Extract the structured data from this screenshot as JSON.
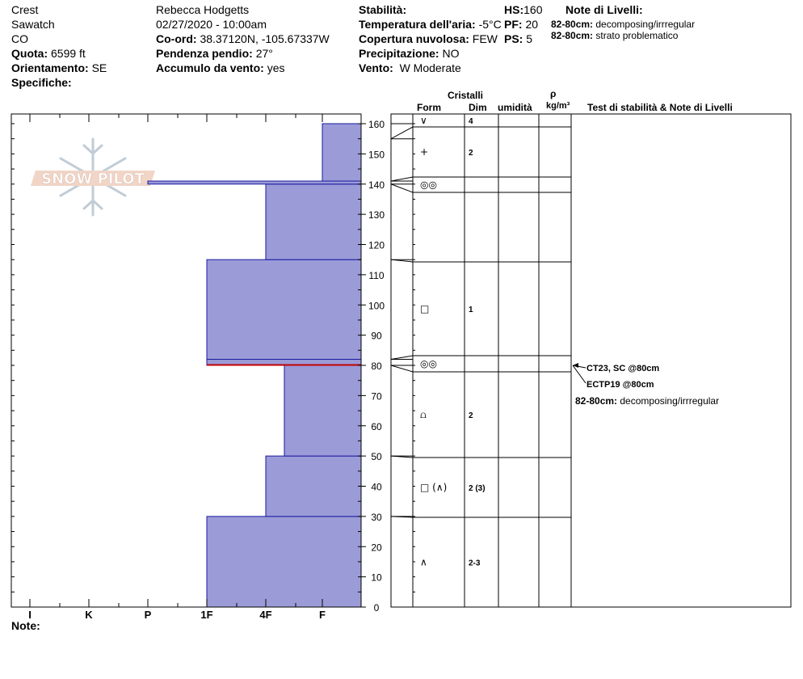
{
  "header": {
    "location": "Crest",
    "range": "Sawatch",
    "state": "CO",
    "elevation_label": "Quota:",
    "elevation": "6599 ft",
    "aspect_label": "Orientamento:",
    "aspect": "SE",
    "specifics_label": "Specifiche:",
    "observer": "Rebecca Hodgetts",
    "datetime": "02/27/2020 - 10:00am",
    "coords_label": "Co-ord:",
    "coords": "38.37120N, -105.67337W",
    "slope_label": "Pendenza pendio:",
    "slope": "27°",
    "wind_loading_label": "Accumulo da vento:",
    "wind_loading": "yes",
    "stability_label": "Stabilità:",
    "air_temp_label": "Temperatura dell'aria:",
    "air_temp": "-5°C",
    "cloud_label": "Copertura nuvolosa:",
    "cloud": "FEW",
    "precip_label": "Precipitazione:",
    "precip": "NO",
    "wind_label": "Vento:",
    "wind": "W Moderate",
    "hs_label": "HS:",
    "hs": "160",
    "pf_label": "PF:",
    "pf": "20",
    "ps_label": "PS:",
    "ps": "5",
    "layer_notes_title": "Note di Livelli:",
    "layer_notes": [
      {
        "depth": "82-80cm:",
        "text": "decomposing/irrregular"
      },
      {
        "depth": "82-80cm:",
        "text": "strato problematico"
      }
    ]
  },
  "columns": {
    "crystals": "Cristalli",
    "form": "Form",
    "dim": "Dim",
    "moisture": "umidità",
    "rho": "ρ",
    "density_unit": "kg/m³",
    "stability_notes": "Test di stabilità & Note di Livelli"
  },
  "notes_label": "Note:",
  "logo_text": "SNOW PILOT",
  "stability_tests": [
    {
      "text": "CT23, SC @80cm"
    },
    {
      "text": "ECTP19 @80cm"
    }
  ],
  "layer_note_inline": {
    "depth": "82-80cm:",
    "text": "decomposing/irrregular"
  },
  "colors": {
    "fill": "#9b9bd8",
    "edge": "#1a1aa0",
    "problem": "#c00000"
  },
  "chart_data": {
    "type": "bar",
    "xlabel": "",
    "ylabel": "",
    "y_range": [
      0,
      160
    ],
    "y_ticks": [
      0,
      10,
      20,
      30,
      40,
      50,
      60,
      70,
      80,
      90,
      100,
      110,
      120,
      130,
      140,
      150,
      160
    ],
    "hardness_scale": [
      "F",
      "4F",
      "1F",
      "P",
      "K",
      "I"
    ],
    "x_tick_labels": [
      "I",
      "K",
      "P",
      "1F",
      "4F",
      "F"
    ],
    "hardness_profile": [
      {
        "bottom": 0,
        "top": 30,
        "hardness": "1F"
      },
      {
        "bottom": 30,
        "top": 50,
        "hardness": "4F"
      },
      {
        "bottom": 50,
        "top": 80,
        "hardness": "4F-"
      },
      {
        "bottom": 80,
        "top": 82,
        "hardness": "1F"
      },
      {
        "bottom": 82,
        "top": 115,
        "hardness": "1F"
      },
      {
        "bottom": 115,
        "top": 140,
        "hardness": "4F"
      },
      {
        "bottom": 140,
        "top": 141,
        "hardness": "P"
      },
      {
        "bottom": 141,
        "top": 160,
        "hardness": "F"
      }
    ],
    "problem_layer_depth": 80,
    "layers": [
      {
        "bottom": 155,
        "top": 160,
        "form": "∨",
        "size": "4"
      },
      {
        "bottom": 141,
        "top": 155,
        "form": "+",
        "size": "2"
      },
      {
        "bottom": 140,
        "top": 141,
        "form": "◎◎",
        "size": ""
      },
      {
        "bottom": 115,
        "top": 140,
        "form": "",
        "size": ""
      },
      {
        "bottom": 82,
        "top": 115,
        "form": "□",
        "size": "1"
      },
      {
        "bottom": 80,
        "top": 82,
        "form": "◎◎",
        "size": ""
      },
      {
        "bottom": 50,
        "top": 80,
        "form": "⩍",
        "size": "2"
      },
      {
        "bottom": 30,
        "top": 50,
        "form": "□ (∧)",
        "size": "2 (3)"
      },
      {
        "bottom": 0,
        "top": 30,
        "form": "∧",
        "size": "2-3"
      }
    ]
  }
}
